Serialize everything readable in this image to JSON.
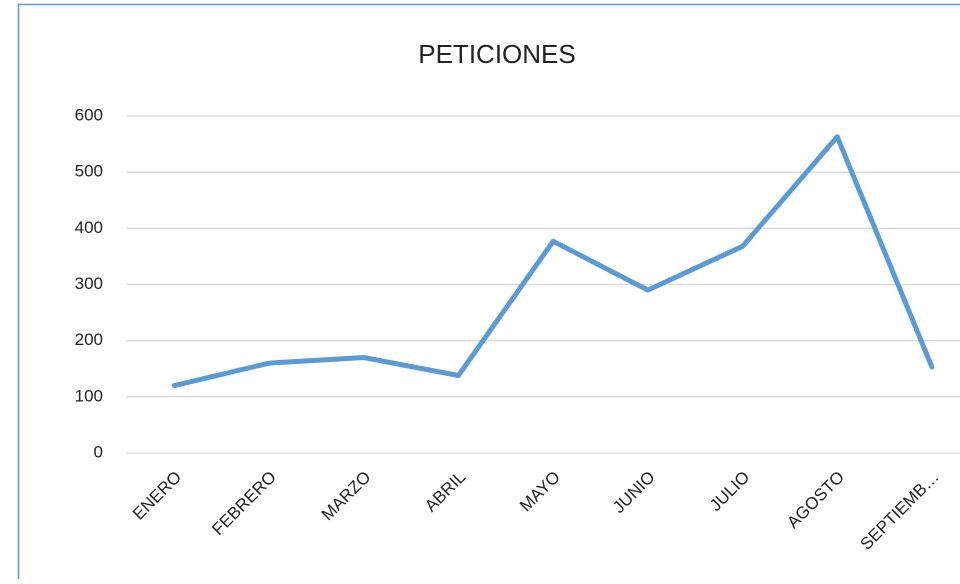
{
  "chart_data": {
    "type": "line",
    "title": "PETICIONES",
    "categories": [
      "ENERO",
      "FEBRERO",
      "MARZO",
      "ABRIL",
      "MAYO",
      "JUNIO",
      "JULIO",
      "AGOSTO",
      "SEPTIEMB…"
    ],
    "series": [
      {
        "name": "PETICIONES",
        "color": "#5b9bd5",
        "values": [
          120,
          160,
          170,
          138,
          377,
          290,
          368,
          563,
          153
        ]
      }
    ],
    "ylim": [
      0,
      600
    ],
    "yticks": [
      0,
      100,
      200,
      300,
      400,
      500,
      600
    ],
    "grid": true
  }
}
